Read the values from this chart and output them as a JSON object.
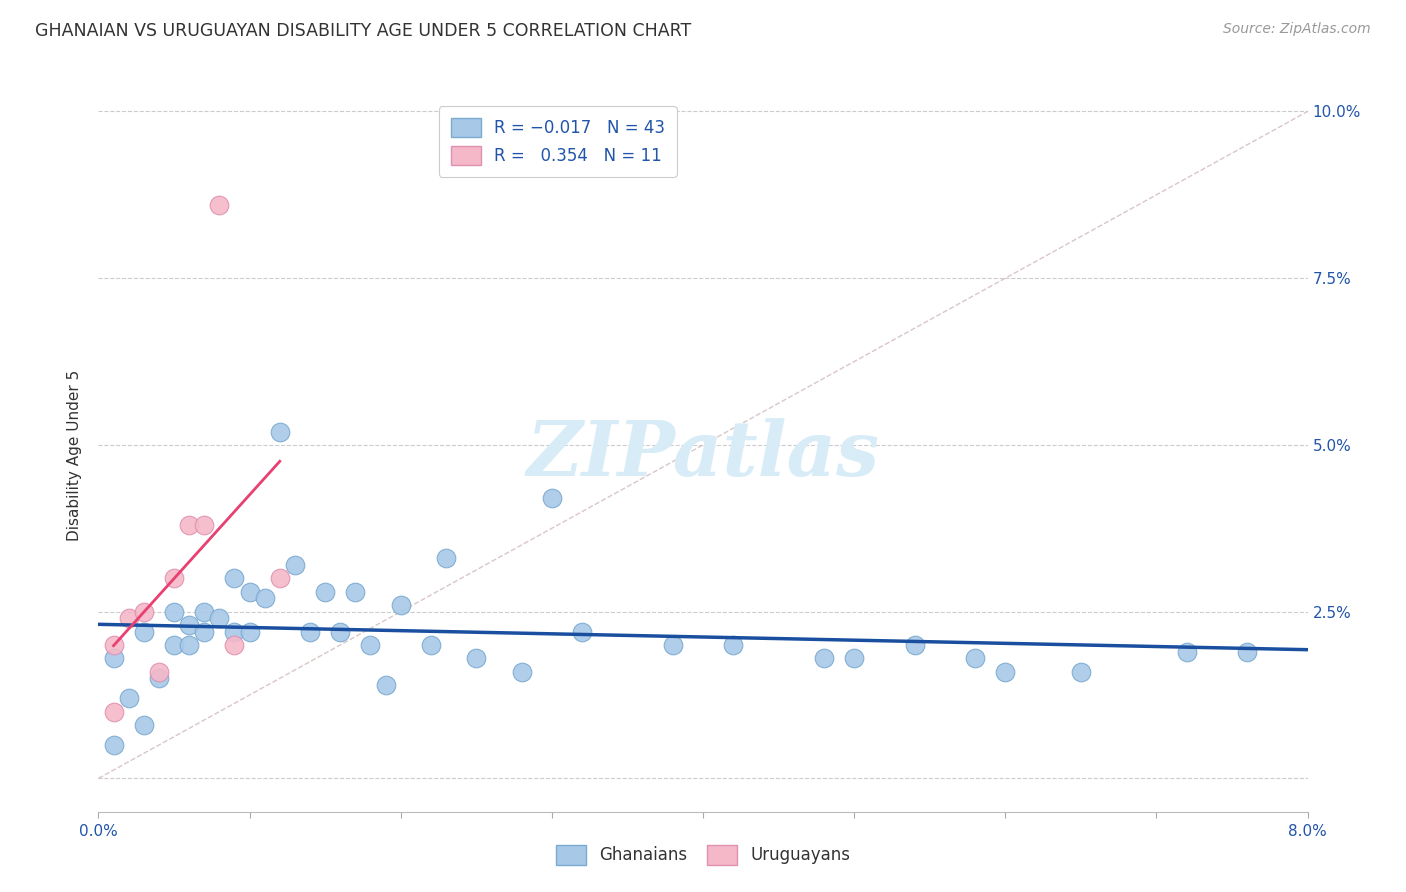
{
  "title": "GHANAIAN VS URUGUAYAN DISABILITY AGE UNDER 5 CORRELATION CHART",
  "source": "Source: ZipAtlas.com",
  "ylabel": "Disability Age Under 5",
  "color_blue": "#a8c8e8",
  "color_pink": "#f4b8c8",
  "edge_blue": "#7aaad0",
  "edge_pink": "#e090b0",
  "line_blue": "#1a4fa0",
  "line_pink": "#e84070",
  "line_diag": "#d0b8b8",
  "watermark_color": "#d8ecf8",
  "xlim": [
    0.0,
    0.08
  ],
  "ylim": [
    -0.005,
    0.102
  ],
  "xticks": [
    0.0,
    0.01,
    0.02,
    0.03,
    0.04,
    0.05,
    0.06,
    0.07,
    0.08
  ],
  "yticks": [
    0.0,
    0.025,
    0.05,
    0.075,
    0.1
  ],
  "ytick_labels_right": [
    "",
    "2.5%",
    "5.0%",
    "7.5%",
    "10.0%"
  ],
  "ghanaian_x": [
    0.001,
    0.001,
    0.002,
    0.003,
    0.003,
    0.004,
    0.005,
    0.005,
    0.006,
    0.006,
    0.007,
    0.007,
    0.008,
    0.009,
    0.009,
    0.01,
    0.01,
    0.011,
    0.012,
    0.013,
    0.014,
    0.015,
    0.016,
    0.017,
    0.018,
    0.019,
    0.02,
    0.022,
    0.023,
    0.025,
    0.028,
    0.03,
    0.032,
    0.038,
    0.042,
    0.048,
    0.05,
    0.054,
    0.058,
    0.06,
    0.065,
    0.072,
    0.076
  ],
  "ghanaian_y": [
    0.005,
    0.018,
    0.012,
    0.008,
    0.022,
    0.015,
    0.02,
    0.025,
    0.02,
    0.023,
    0.022,
    0.025,
    0.024,
    0.03,
    0.022,
    0.028,
    0.022,
    0.027,
    0.052,
    0.032,
    0.022,
    0.028,
    0.022,
    0.028,
    0.02,
    0.014,
    0.026,
    0.02,
    0.033,
    0.018,
    0.016,
    0.042,
    0.022,
    0.02,
    0.02,
    0.018,
    0.018,
    0.02,
    0.018,
    0.016,
    0.016,
    0.019,
    0.019
  ],
  "uruguayan_x": [
    0.001,
    0.001,
    0.002,
    0.003,
    0.004,
    0.005,
    0.006,
    0.007,
    0.008,
    0.009,
    0.012
  ],
  "uruguayan_y": [
    0.01,
    0.02,
    0.024,
    0.025,
    0.016,
    0.03,
    0.038,
    0.038,
    0.086,
    0.02,
    0.03
  ],
  "marker_size": 180
}
